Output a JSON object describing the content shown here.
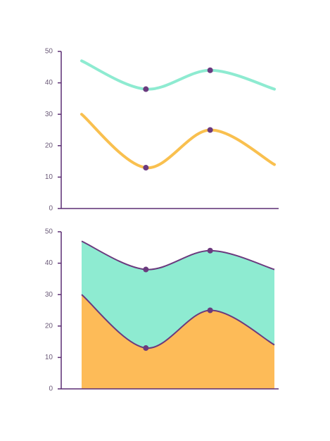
{
  "chart_data": [
    {
      "type": "line",
      "categories": [
        null,
        null,
        null,
        null
      ],
      "series": [
        {
          "color": "#8eebd1",
          "values": [
            47,
            38,
            44,
            38
          ]
        },
        {
          "color": "#f9c04f",
          "values": [
            30,
            13,
            25,
            14
          ]
        }
      ],
      "markers": [
        1,
        2
      ],
      "marker_color": "#6b3a7e",
      "axis_color": "#5c2d73",
      "ylim": [
        0,
        50
      ],
      "yticks": [
        0,
        10,
        20,
        30,
        40,
        50
      ]
    },
    {
      "type": "area",
      "categories": [
        null,
        null,
        null,
        null
      ],
      "series": [
        {
          "color": "#8eebd1",
          "values": [
            47,
            38,
            44,
            38
          ]
        },
        {
          "color": "#fdbb58",
          "values": [
            30,
            13,
            25,
            14
          ]
        }
      ],
      "markers": [
        1,
        2
      ],
      "marker_color": "#6b3a7e",
      "axis_color": "#5c2d73",
      "ylim": [
        0,
        50
      ],
      "yticks": [
        0,
        10,
        20,
        30,
        40,
        50
      ]
    }
  ]
}
